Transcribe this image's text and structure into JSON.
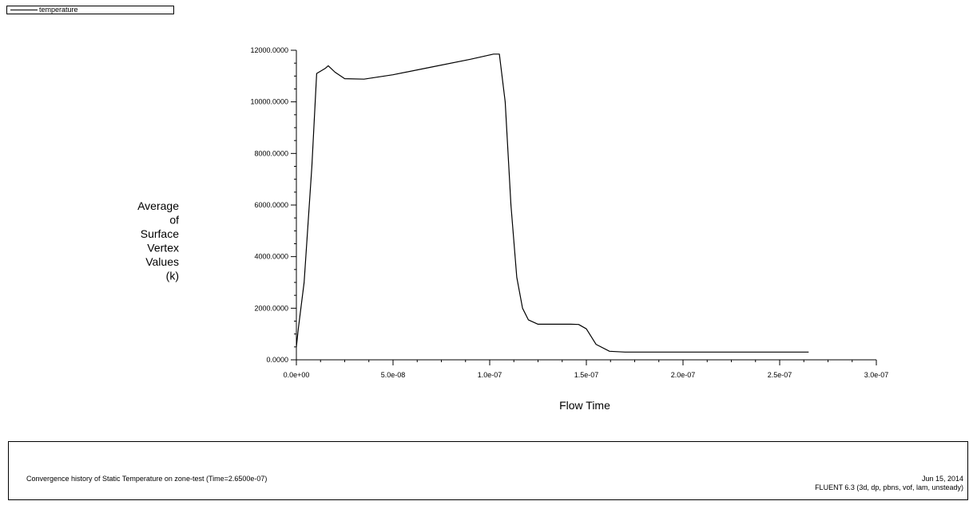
{
  "legend": {
    "entries": [
      "temperature"
    ]
  },
  "chart_data": {
    "type": "line",
    "title": "",
    "xlabel": "Flow Time",
    "ylabel_lines": [
      "Average",
      "of",
      "Surface",
      "Vertex",
      "Values",
      "(k)"
    ],
    "xlim": [
      0,
      3e-07
    ],
    "ylim": [
      0,
      12000
    ],
    "xticks": [
      0,
      5e-08,
      1e-07,
      1.5e-07,
      2e-07,
      2.5e-07,
      3e-07
    ],
    "xtick_labels": [
      "0.0e+00",
      "5.0e-08",
      "1.0e-07",
      "1.5e-07",
      "2.0e-07",
      "2.5e-07",
      "3.0e-07"
    ],
    "yticks": [
      0,
      2000,
      4000,
      6000,
      8000,
      10000,
      12000
    ],
    "ytick_labels": [
      "0.0000",
      "2000.0000",
      "4000.0000",
      "6000.0000",
      "8000.0000",
      "10000.0000",
      "12000.0000"
    ],
    "grid": false,
    "legend_position": "top-left",
    "series": [
      {
        "name": "temperature",
        "color": "#000000",
        "x": [
          0,
          1e-09,
          4e-09,
          8e-09,
          1.05e-08,
          1.5e-08,
          1.65e-08,
          2e-08,
          2.5e-08,
          3.5e-08,
          5e-08,
          7e-08,
          9e-08,
          1.02e-07,
          1.05e-07,
          1.08e-07,
          1.11e-07,
          1.14e-07,
          1.17e-07,
          1.2e-07,
          1.25e-07,
          1.3e-07,
          1.42e-07,
          1.46e-07,
          1.5e-07,
          1.55e-07,
          1.62e-07,
          1.7e-07,
          2e-07,
          2.35e-07,
          2.65e-07
        ],
        "y": [
          500,
          1200,
          3000,
          7500,
          11100,
          11300,
          11400,
          11150,
          10900,
          10880,
          11050,
          11350,
          11650,
          11850,
          11850,
          10000,
          6000,
          3200,
          2000,
          1550,
          1380,
          1380,
          1380,
          1370,
          1200,
          600,
          330,
          300,
          300,
          300,
          300
        ]
      }
    ]
  },
  "footer": {
    "caption": "Convergence history of Static Temperature on zone-test  (Time=2.6500e-07)",
    "date": "Jun 15, 2014",
    "version": "FLUENT 6.3 (3d, dp, pbns, vof, lam, unsteady)"
  }
}
